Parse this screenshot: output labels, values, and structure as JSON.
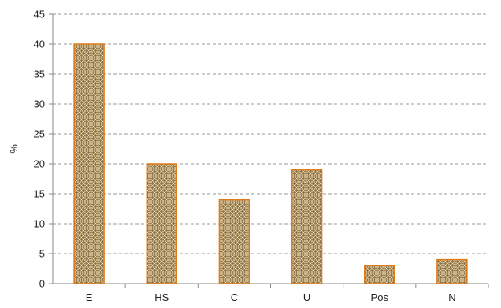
{
  "chart_data": {
    "type": "bar",
    "title": "",
    "xlabel": "",
    "ylabel": "%",
    "categories": [
      "E",
      "HS",
      "C",
      "U",
      "Pos",
      "N"
    ],
    "values": [
      40,
      20,
      14,
      19,
      3,
      4
    ],
    "ylim": [
      0,
      45
    ],
    "yticks": [
      0,
      5,
      10,
      15,
      20,
      25,
      30,
      35,
      40,
      45
    ],
    "grid": "horizontal-dashed",
    "legend": "none",
    "colors": {
      "bar_fill": "#c9b48a",
      "bar_pattern": "#8b6d3f",
      "bar_outline": "#e07b1a",
      "grid": "#9a9a9a",
      "axis": "#888888"
    }
  }
}
